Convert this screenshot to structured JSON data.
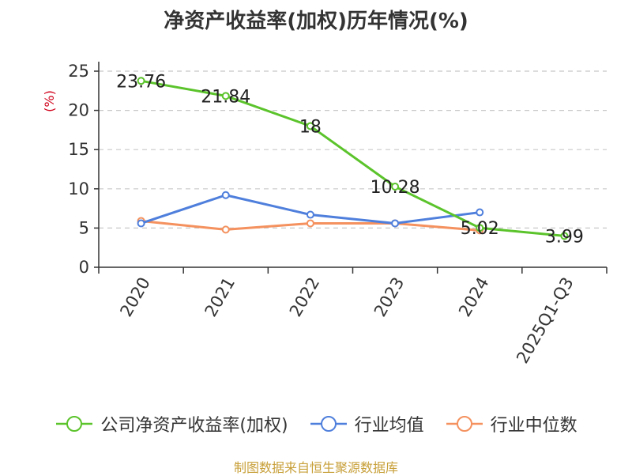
{
  "title": "净资产收益率(加权)历年情况(%)",
  "source": "制图数据来自恒生聚源数据库",
  "chart_data": {
    "type": "line",
    "title": "净资产收益率(加权)历年情况(%)",
    "ylabel": "(%)",
    "xlabel": "",
    "categories": [
      "2020",
      "2021",
      "2022",
      "2023",
      "2024",
      "2025Q1-Q3"
    ],
    "ylim": [
      0,
      25
    ],
    "yticks": [
      0,
      5,
      10,
      15,
      20,
      25
    ],
    "grid": "horizontal-dashed",
    "legend_position": "bottom",
    "series": [
      {
        "name": "公司净资产收益率(加权)",
        "color": "#5bc32b",
        "values": [
          23.76,
          21.84,
          18,
          10.28,
          5.02,
          3.99
        ],
        "labels": [
          "23.76",
          "21.84",
          "18",
          "10.28",
          "5.02",
          "3.99"
        ]
      },
      {
        "name": "行业均值",
        "color": "#4f7fdc",
        "values": [
          5.6,
          9.2,
          6.7,
          5.6,
          7.0,
          null
        ]
      },
      {
        "name": "行业中位数",
        "color": "#f4915e",
        "values": [
          5.9,
          4.8,
          5.6,
          5.6,
          4.7,
          null
        ]
      }
    ]
  }
}
